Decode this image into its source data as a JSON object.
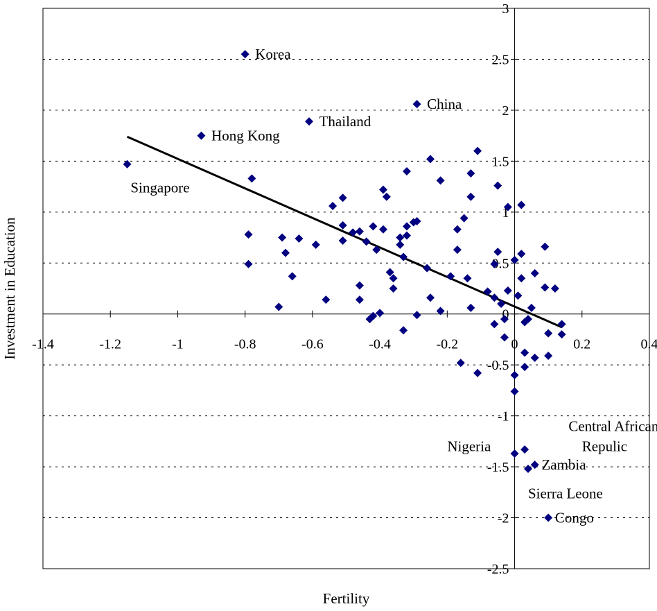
{
  "chart_data": {
    "type": "scatter",
    "title": "",
    "xlabel": "Fertility",
    "ylabel": "Investment in Education",
    "xlim": [
      -1.4,
      0.4
    ],
    "ylim": [
      -2.5,
      3
    ],
    "x_ticks": [
      "-1.4",
      "-1.2",
      "-1",
      "-0.8",
      "-0.6",
      "-0.4",
      "-0.2",
      "0",
      "0.2",
      "0.4"
    ],
    "y_ticks": [
      "3",
      "2.5",
      "2",
      "1.5",
      "1",
      "0.5",
      "0",
      "-0.5",
      "-1",
      "-1.5",
      "-2",
      "-2.5"
    ],
    "grid": "horizontal dashed",
    "marker_color": "#000080",
    "points": [
      {
        "x": -0.8,
        "y": 2.55
      },
      {
        "x": -0.29,
        "y": 2.06
      },
      {
        "x": -0.61,
        "y": 1.89
      },
      {
        "x": -0.93,
        "y": 1.75
      },
      {
        "x": -1.15,
        "y": 1.47
      },
      {
        "x": -0.78,
        "y": 1.33
      },
      {
        "x": -0.11,
        "y": 1.6
      },
      {
        "x": -0.25,
        "y": 1.52
      },
      {
        "x": -0.32,
        "y": 1.4
      },
      {
        "x": -0.13,
        "y": 1.38
      },
      {
        "x": -0.22,
        "y": 1.31
      },
      {
        "x": -0.05,
        "y": 1.26
      },
      {
        "x": -0.39,
        "y": 1.22
      },
      {
        "x": -0.38,
        "y": 1.15
      },
      {
        "x": -0.13,
        "y": 1.15
      },
      {
        "x": -0.51,
        "y": 1.14
      },
      {
        "x": -0.54,
        "y": 1.06
      },
      {
        "x": 0.02,
        "y": 1.07
      },
      {
        "x": -0.02,
        "y": 1.05
      },
      {
        "x": -0.15,
        "y": 0.94
      },
      {
        "x": -0.29,
        "y": 0.91
      },
      {
        "x": -0.3,
        "y": 0.9
      },
      {
        "x": -0.51,
        "y": 0.87
      },
      {
        "x": -0.42,
        "y": 0.86
      },
      {
        "x": -0.32,
        "y": 0.86
      },
      {
        "x": -0.39,
        "y": 0.83
      },
      {
        "x": -0.17,
        "y": 0.83
      },
      {
        "x": -0.48,
        "y": 0.8
      },
      {
        "x": -0.46,
        "y": 0.81
      },
      {
        "x": -0.79,
        "y": 0.78
      },
      {
        "x": -0.32,
        "y": 0.77
      },
      {
        "x": -0.69,
        "y": 0.75
      },
      {
        "x": -0.34,
        "y": 0.75
      },
      {
        "x": -0.64,
        "y": 0.74
      },
      {
        "x": -0.51,
        "y": 0.72
      },
      {
        "x": -0.44,
        "y": 0.71
      },
      {
        "x": -0.59,
        "y": 0.68
      },
      {
        "x": -0.34,
        "y": 0.68
      },
      {
        "x": 0.09,
        "y": 0.66
      },
      {
        "x": -0.41,
        "y": 0.63
      },
      {
        "x": -0.17,
        "y": 0.63
      },
      {
        "x": -0.05,
        "y": 0.61
      },
      {
        "x": -0.68,
        "y": 0.6
      },
      {
        "x": 0.02,
        "y": 0.59
      },
      {
        "x": -0.33,
        "y": 0.56
      },
      {
        "x": 0.0,
        "y": 0.53
      },
      {
        "x": -0.79,
        "y": 0.49
      },
      {
        "x": -0.06,
        "y": 0.49
      },
      {
        "x": -0.26,
        "y": 0.45
      },
      {
        "x": -0.37,
        "y": 0.41
      },
      {
        "x": 0.06,
        "y": 0.4
      },
      {
        "x": -0.19,
        "y": 0.37
      },
      {
        "x": -0.66,
        "y": 0.37
      },
      {
        "x": -0.36,
        "y": 0.35
      },
      {
        "x": -0.14,
        "y": 0.35
      },
      {
        "x": 0.02,
        "y": 0.35
      },
      {
        "x": -0.46,
        "y": 0.28
      },
      {
        "x": 0.09,
        "y": 0.26
      },
      {
        "x": 0.12,
        "y": 0.25
      },
      {
        "x": -0.36,
        "y": 0.25
      },
      {
        "x": -0.02,
        "y": 0.23
      },
      {
        "x": -0.08,
        "y": 0.22
      },
      {
        "x": 0.01,
        "y": 0.18
      },
      {
        "x": -0.25,
        "y": 0.16
      },
      {
        "x": -0.06,
        "y": 0.16
      },
      {
        "x": -0.56,
        "y": 0.14
      },
      {
        "x": -0.46,
        "y": 0.14
      },
      {
        "x": -0.04,
        "y": 0.1
      },
      {
        "x": -0.7,
        "y": 0.07
      },
      {
        "x": -0.13,
        "y": 0.06
      },
      {
        "x": 0.05,
        "y": 0.06
      },
      {
        "x": -0.22,
        "y": 0.03
      },
      {
        "x": -0.4,
        "y": 0.01
      },
      {
        "x": -0.29,
        "y": -0.01
      },
      {
        "x": -0.42,
        "y": -0.02
      },
      {
        "x": -0.43,
        "y": -0.05
      },
      {
        "x": -0.03,
        "y": -0.05
      },
      {
        "x": 0.04,
        "y": -0.05
      },
      {
        "x": 0.03,
        "y": -0.08
      },
      {
        "x": -0.06,
        "y": -0.1
      },
      {
        "x": 0.14,
        "y": -0.1
      },
      {
        "x": -0.33,
        "y": -0.16
      },
      {
        "x": 0.1,
        "y": -0.19
      },
      {
        "x": 0.14,
        "y": -0.2
      },
      {
        "x": -0.03,
        "y": -0.23
      },
      {
        "x": 0.03,
        "y": -0.38
      },
      {
        "x": 0.1,
        "y": -0.41
      },
      {
        "x": 0.06,
        "y": -0.43
      },
      {
        "x": -0.16,
        "y": -0.48
      },
      {
        "x": 0.03,
        "y": -0.52
      },
      {
        "x": -0.11,
        "y": -0.58
      },
      {
        "x": 0.0,
        "y": -0.6
      },
      {
        "x": 0.0,
        "y": -0.76
      },
      {
        "x": 0.0,
        "y": -1.37
      },
      {
        "x": 0.03,
        "y": -1.33
      },
      {
        "x": 0.06,
        "y": -1.48
      },
      {
        "x": 0.04,
        "y": -1.52
      },
      {
        "x": 0.1,
        "y": -2.0
      }
    ],
    "trendline": {
      "x": [
        -1.15,
        0.14
      ],
      "y": [
        1.74,
        -0.13
      ]
    },
    "annotations": [
      {
        "text": "Korea",
        "x": -0.77,
        "y": 2.55,
        "anchor": "start"
      },
      {
        "text": "China",
        "x": -0.26,
        "y": 2.06,
        "anchor": "start"
      },
      {
        "text": "Thailand",
        "x": -0.58,
        "y": 1.89,
        "anchor": "start"
      },
      {
        "text": "Hong Kong",
        "x": -0.9,
        "y": 1.75,
        "anchor": "start"
      },
      {
        "text": "Singapore",
        "x": -1.14,
        "y": 1.24,
        "anchor": "start"
      },
      {
        "text": "Central African",
        "x": 0.16,
        "y": -1.1,
        "anchor": "start"
      },
      {
        "text": "Repulic",
        "x": 0.2,
        "y": -1.3,
        "anchor": "start"
      },
      {
        "text": "Nigeria",
        "x": -0.2,
        "y": -1.3,
        "anchor": "start"
      },
      {
        "text": "Zambia",
        "x": 0.08,
        "y": -1.48,
        "anchor": "start"
      },
      {
        "text": "Sierra Leone",
        "x": 0.04,
        "y": -1.76,
        "anchor": "start"
      },
      {
        "text": "Congo",
        "x": 0.12,
        "y": -2.0,
        "anchor": "start"
      }
    ]
  }
}
